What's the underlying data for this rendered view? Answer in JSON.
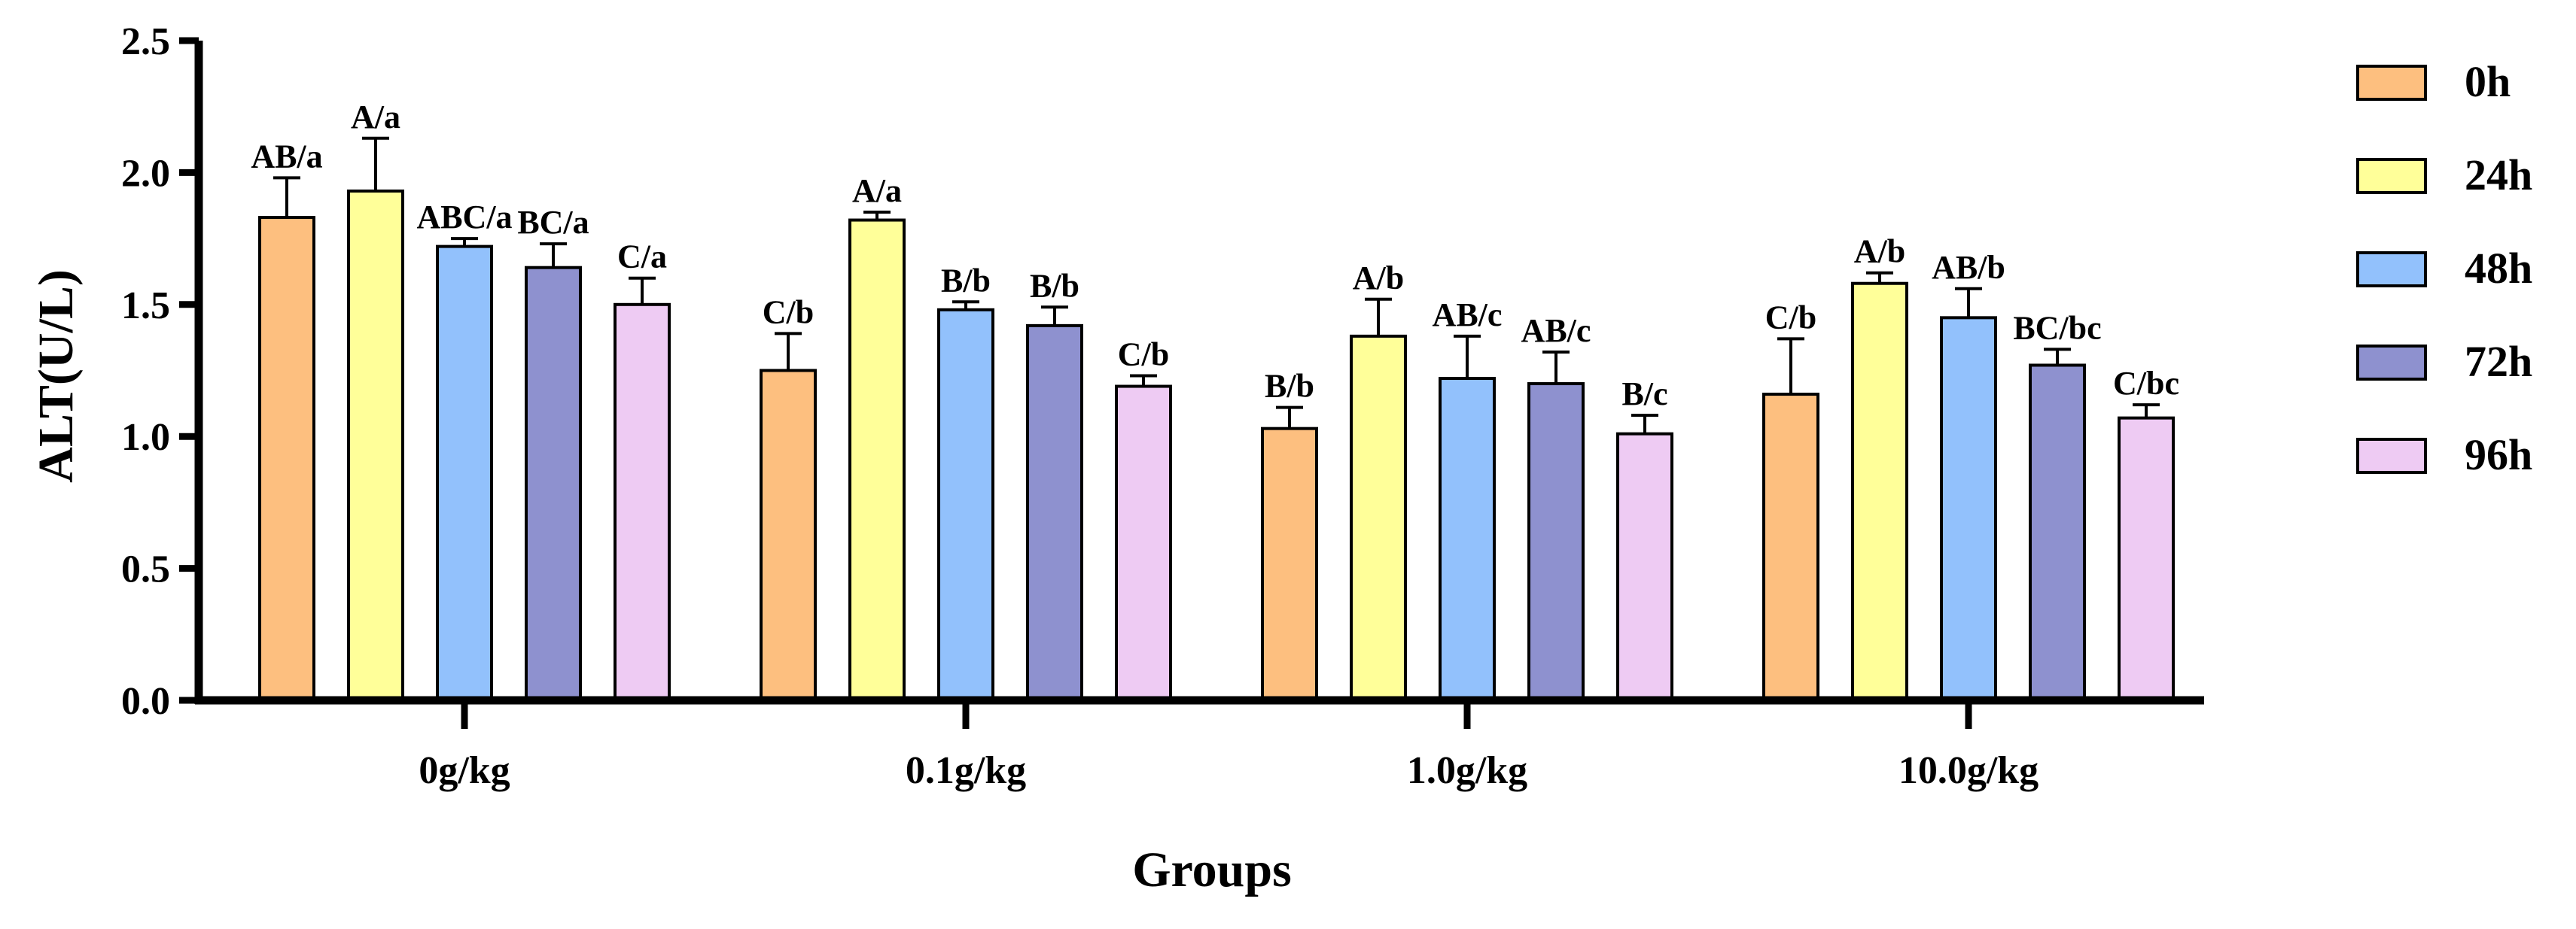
{
  "chart_data": {
    "type": "bar",
    "xlabel": "Groups",
    "ylabel": "ALT(U/L)",
    "ylim": [
      0,
      2.5
    ],
    "y_ticks": [
      "0.0",
      "0.5",
      "1.0",
      "1.5",
      "2.0",
      "2.5"
    ],
    "categories": [
      "0g/kg",
      "0.1g/kg",
      "1.0g/kg",
      "10.0g/kg"
    ],
    "legend_position": "right",
    "series": [
      {
        "name": "0h",
        "color": "#FDBF7F",
        "values": [
          1.83,
          1.25,
          1.03,
          1.16
        ],
        "errors": [
          0.15,
          0.14,
          0.08,
          0.21
        ],
        "labels": [
          "AB/a",
          "C/b",
          "B/b",
          "C/b"
        ]
      },
      {
        "name": "24h",
        "color": "#FFFF99",
        "values": [
          1.93,
          1.82,
          1.38,
          1.58
        ],
        "errors": [
          0.2,
          0.03,
          0.14,
          0.04
        ],
        "labels": [
          "A/a",
          "A/a",
          "A/b",
          "A/b"
        ]
      },
      {
        "name": "48h",
        "color": "#92C1FC",
        "values": [
          1.72,
          1.48,
          1.22,
          1.45
        ],
        "errors": [
          0.03,
          0.03,
          0.16,
          0.11
        ],
        "labels": [
          "ABC/a",
          "B/b",
          "AB/c",
          "AB/b"
        ]
      },
      {
        "name": "72h",
        "color": "#8E91CF",
        "values": [
          1.64,
          1.42,
          1.2,
          1.27
        ],
        "errors": [
          0.09,
          0.07,
          0.12,
          0.06
        ],
        "labels": [
          "BC/a",
          "B/b",
          "AB/c",
          "BC/bc"
        ]
      },
      {
        "name": "96h",
        "color": "#EECBF3",
        "values": [
          1.5,
          1.19,
          1.01,
          1.07
        ],
        "errors": [
          0.1,
          0.04,
          0.07,
          0.05
        ],
        "labels": [
          "C/a",
          "C/b",
          "B/c",
          "C/bc"
        ]
      }
    ]
  }
}
